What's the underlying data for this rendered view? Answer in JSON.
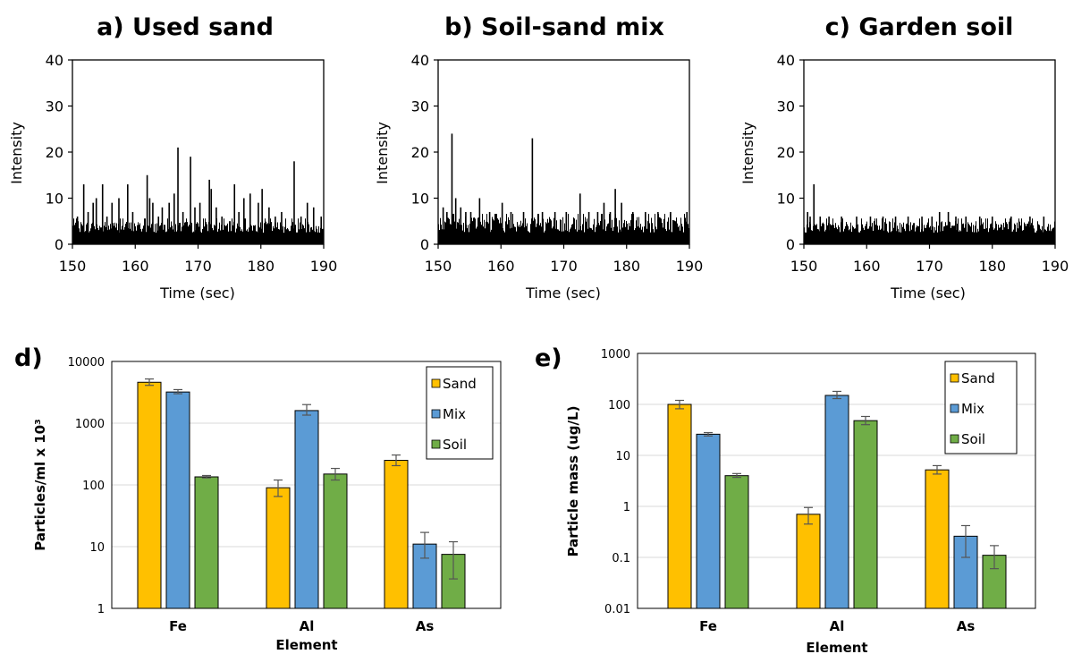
{
  "chart_data": [
    {
      "type": "line",
      "title": "a) Used sand",
      "xlabel": "Time (sec)",
      "ylabel": "Intensity",
      "xlim": [
        150,
        190
      ],
      "ylim": [
        0,
        40
      ],
      "xticks": [
        "150",
        "160",
        "170",
        "180",
        "190"
      ],
      "yticks": [
        "0",
        "10",
        "20",
        "30",
        "40"
      ],
      "baseline_max": 5,
      "spikes": [
        {
          "x": 150.8,
          "y": 6
        },
        {
          "x": 151.8,
          "y": 13
        },
        {
          "x": 152.5,
          "y": 7
        },
        {
          "x": 153.3,
          "y": 9
        },
        {
          "x": 153.8,
          "y": 10
        },
        {
          "x": 154.8,
          "y": 13
        },
        {
          "x": 155.5,
          "y": 6
        },
        {
          "x": 156.3,
          "y": 9
        },
        {
          "x": 157.4,
          "y": 10
        },
        {
          "x": 158.8,
          "y": 13
        },
        {
          "x": 159.6,
          "y": 7
        },
        {
          "x": 161.9,
          "y": 15
        },
        {
          "x": 162.3,
          "y": 10
        },
        {
          "x": 162.8,
          "y": 9
        },
        {
          "x": 163.7,
          "y": 6
        },
        {
          "x": 164.3,
          "y": 8
        },
        {
          "x": 165.4,
          "y": 9
        },
        {
          "x": 166.2,
          "y": 11
        },
        {
          "x": 166.8,
          "y": 21
        },
        {
          "x": 167.6,
          "y": 7
        },
        {
          "x": 168.8,
          "y": 19
        },
        {
          "x": 169.5,
          "y": 8
        },
        {
          "x": 170.3,
          "y": 9
        },
        {
          "x": 171.8,
          "y": 14
        },
        {
          "x": 172.1,
          "y": 12
        },
        {
          "x": 172.9,
          "y": 8
        },
        {
          "x": 173.8,
          "y": 6
        },
        {
          "x": 175.8,
          "y": 13
        },
        {
          "x": 176.5,
          "y": 7
        },
        {
          "x": 177.3,
          "y": 10
        },
        {
          "x": 178.3,
          "y": 11
        },
        {
          "x": 179.6,
          "y": 9
        },
        {
          "x": 180.2,
          "y": 12
        },
        {
          "x": 181.3,
          "y": 8
        },
        {
          "x": 182.3,
          "y": 6
        },
        {
          "x": 183.3,
          "y": 7
        },
        {
          "x": 185.3,
          "y": 18
        },
        {
          "x": 186.4,
          "y": 6
        },
        {
          "x": 187.4,
          "y": 9
        },
        {
          "x": 188.4,
          "y": 8
        },
        {
          "x": 189.6,
          "y": 6
        }
      ]
    },
    {
      "type": "line",
      "title": "b) Soil-sand mix",
      "xlabel": "Time (sec)",
      "ylabel": "Intensity",
      "xlim": [
        150,
        190
      ],
      "ylim": [
        0,
        40
      ],
      "xticks": [
        "150",
        "160",
        "170",
        "180",
        "190"
      ],
      "yticks": [
        "0",
        "10",
        "20",
        "30",
        "40"
      ],
      "baseline_max": 6,
      "spikes": [
        {
          "x": 150.8,
          "y": 8
        },
        {
          "x": 151.4,
          "y": 7
        },
        {
          "x": 152.2,
          "y": 24
        },
        {
          "x": 152.8,
          "y": 10
        },
        {
          "x": 153.6,
          "y": 8
        },
        {
          "x": 154.4,
          "y": 7
        },
        {
          "x": 155.2,
          "y": 7
        },
        {
          "x": 156.6,
          "y": 10
        },
        {
          "x": 158.2,
          "y": 7
        },
        {
          "x": 160.2,
          "y": 9
        },
        {
          "x": 161.6,
          "y": 7
        },
        {
          "x": 163.6,
          "y": 7
        },
        {
          "x": 165.0,
          "y": 23
        },
        {
          "x": 166.6,
          "y": 7
        },
        {
          "x": 168.6,
          "y": 7
        },
        {
          "x": 170.4,
          "y": 7
        },
        {
          "x": 172.6,
          "y": 11
        },
        {
          "x": 174.0,
          "y": 7
        },
        {
          "x": 175.4,
          "y": 7
        },
        {
          "x": 176.4,
          "y": 9
        },
        {
          "x": 177.4,
          "y": 7
        },
        {
          "x": 178.2,
          "y": 12
        },
        {
          "x": 179.2,
          "y": 9
        },
        {
          "x": 181.0,
          "y": 7
        },
        {
          "x": 183.0,
          "y": 7
        },
        {
          "x": 185.0,
          "y": 7
        },
        {
          "x": 187.0,
          "y": 7
        },
        {
          "x": 189.6,
          "y": 7
        }
      ]
    },
    {
      "type": "line",
      "title": "c) Garden soil",
      "xlabel": "Time (sec)",
      "ylabel": "Intensity",
      "xlim": [
        150,
        190
      ],
      "ylim": [
        0,
        40
      ],
      "xticks": [
        "150",
        "160",
        "170",
        "180",
        "190"
      ],
      "yticks": [
        "0",
        "10",
        "20",
        "30",
        "40"
      ],
      "baseline_max": 5,
      "spikes": [
        {
          "x": 150.6,
          "y": 7
        },
        {
          "x": 151.0,
          "y": 6
        },
        {
          "x": 151.6,
          "y": 13
        },
        {
          "x": 152.6,
          "y": 6
        },
        {
          "x": 154.0,
          "y": 6
        },
        {
          "x": 156.0,
          "y": 6
        },
        {
          "x": 158.4,
          "y": 6
        },
        {
          "x": 160.6,
          "y": 6
        },
        {
          "x": 162.6,
          "y": 6
        },
        {
          "x": 164.6,
          "y": 6
        },
        {
          "x": 166.6,
          "y": 6
        },
        {
          "x": 168.8,
          "y": 6
        },
        {
          "x": 170.4,
          "y": 6
        },
        {
          "x": 171.6,
          "y": 7
        },
        {
          "x": 173.0,
          "y": 7
        },
        {
          "x": 174.2,
          "y": 6
        },
        {
          "x": 175.8,
          "y": 6
        },
        {
          "x": 178.0,
          "y": 6
        },
        {
          "x": 180.0,
          "y": 6
        },
        {
          "x": 183.0,
          "y": 6
        },
        {
          "x": 186.0,
          "y": 6
        },
        {
          "x": 188.2,
          "y": 6
        }
      ]
    },
    {
      "type": "bar",
      "panel_label": "d)",
      "categories": [
        "Fe",
        "Al",
        "As"
      ],
      "xlabel": "Element",
      "ylabel": "Particles/ml x 10³",
      "log_scale": true,
      "ylim": [
        1,
        10000
      ],
      "yticks": [
        "1",
        "10",
        "100",
        "1000",
        "10000"
      ],
      "legend": "top-right",
      "series": [
        {
          "name": "Sand",
          "color": "#FFC000",
          "values": [
            4600,
            90,
            250
          ],
          "err_low": [
            4100,
            65,
            205
          ],
          "err_high": [
            5200,
            120,
            305
          ]
        },
        {
          "name": "Mix",
          "color": "#5B9BD5",
          "values": [
            3200,
            1600,
            11
          ],
          "err_low": [
            3000,
            1350,
            6.5
          ],
          "err_high": [
            3500,
            2000,
            17
          ]
        },
        {
          "name": "Soil",
          "color": "#70AD47",
          "values": [
            135,
            150,
            7.5
          ],
          "err_low": [
            130,
            120,
            3
          ],
          "err_high": [
            142,
            185,
            12
          ]
        }
      ]
    },
    {
      "type": "bar",
      "panel_label": "e)",
      "categories": [
        "Fe",
        "Al",
        "As"
      ],
      "xlabel": "Element",
      "ylabel": "Particle mass (ug/L)",
      "log_scale": true,
      "ylim": [
        0.01,
        1000
      ],
      "yticks": [
        "0.01",
        "0.1",
        "1",
        "10",
        "100",
        "1000"
      ],
      "legend": "top-right",
      "series": [
        {
          "name": "Sand",
          "color": "#FFC000",
          "values": [
            100,
            0.7,
            5.2
          ],
          "err_low": [
            82,
            0.45,
            4.3
          ],
          "err_high": [
            120,
            0.95,
            6.3
          ]
        },
        {
          "name": "Mix",
          "color": "#5B9BD5",
          "values": [
            26,
            150,
            0.26
          ],
          "err_low": [
            24,
            130,
            0.1
          ],
          "err_high": [
            28,
            180,
            0.42
          ]
        },
        {
          "name": "Soil",
          "color": "#70AD47",
          "values": [
            4,
            48,
            0.11
          ],
          "err_low": [
            3.7,
            40,
            0.06
          ],
          "err_high": [
            4.4,
            58,
            0.17
          ]
        }
      ]
    }
  ]
}
